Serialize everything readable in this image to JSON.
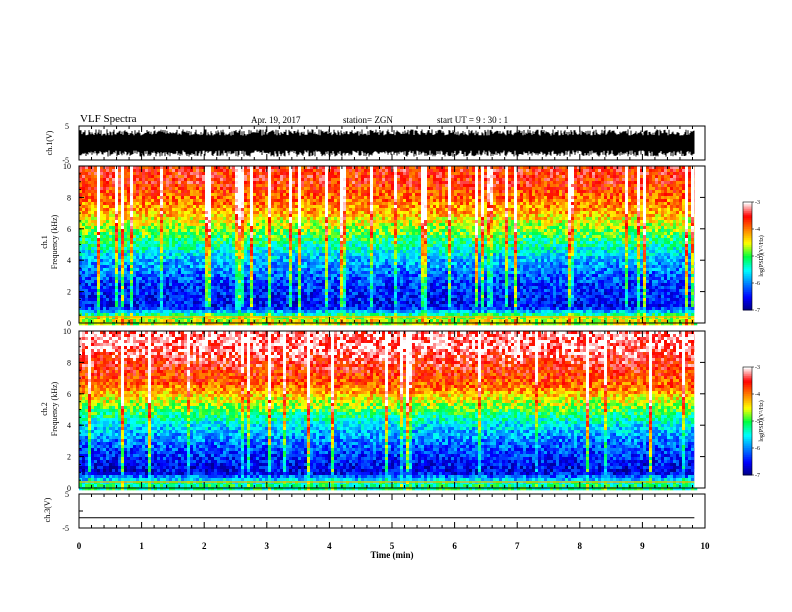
{
  "header": {
    "title": "VLF Spectra",
    "date": "Apr. 19, 2017",
    "station": "station= ZGN",
    "start_time": "start  UT  =   9 : 30 : 1"
  },
  "chart_data": [
    {
      "type": "line",
      "panel": "ch1-waveform",
      "ylabel": "ch.1(V)",
      "ylim": [
        -5,
        5
      ],
      "yticks": [
        5,
        -5
      ],
      "xlim": [
        0,
        10
      ],
      "description_signal": "dense noise waveform",
      "approx_amplitude_range": [
        -4,
        4
      ]
    },
    {
      "type": "heatmap",
      "panel": "ch1-spectrogram",
      "ylabel_line1": "ch.1",
      "ylabel_line2": "Frequency (kHz)",
      "xlim": [
        0,
        10
      ],
      "data_end_min": 9.83,
      "ylim": [
        0,
        10
      ],
      "yticks": [
        0,
        2,
        4,
        6,
        8,
        10
      ],
      "level_profile": [
        {
          "freq_khz": 0.3,
          "log_psd": -4.6
        },
        {
          "freq_khz": 1.0,
          "log_psd": -6.5
        },
        {
          "freq_khz": 2.5,
          "log_psd": -6.3
        },
        {
          "freq_khz": 4.0,
          "log_psd": -5.8
        },
        {
          "freq_khz": 5.5,
          "log_psd": -5.0
        },
        {
          "freq_khz": 7.0,
          "log_psd": -4.2
        },
        {
          "freq_khz": 9.0,
          "log_psd": -3.6
        }
      ],
      "colorbar": {
        "label": "log(PSD)(V²/Hz)",
        "min": -7,
        "max": -3,
        "ticks": [
          -3,
          -4,
          -5,
          -6,
          -7
        ]
      }
    },
    {
      "type": "heatmap",
      "panel": "ch2-spectrogram",
      "ylabel_line1": "ch.2",
      "ylabel_line2": "Frequency (kHz)",
      "xlim": [
        0,
        10
      ],
      "data_end_min": 9.83,
      "ylim": [
        0,
        10
      ],
      "yticks": [
        0,
        2,
        4,
        6,
        8,
        10
      ],
      "level_profile": [
        {
          "freq_khz": 0.3,
          "log_psd": -5.2
        },
        {
          "freq_khz": 1.0,
          "log_psd": -6.6
        },
        {
          "freq_khz": 2.5,
          "log_psd": -6.2
        },
        {
          "freq_khz": 4.0,
          "log_psd": -5.6
        },
        {
          "freq_khz": 5.0,
          "log_psd": -4.9
        },
        {
          "freq_khz": 6.5,
          "log_psd": -3.9
        },
        {
          "freq_khz": 9.0,
          "log_psd": -3.2
        }
      ],
      "colorbar": {
        "label": "log(PSD)(V²/Hz)",
        "min": -7,
        "max": -3,
        "ticks": [
          -3,
          -4,
          -5,
          -6,
          -7
        ]
      }
    },
    {
      "type": "line",
      "panel": "ch3-waveform",
      "ylabel": "ch.3(V)",
      "ylim": [
        -5,
        5
      ],
      "yticks": [
        5,
        0,
        -5
      ],
      "xlim": [
        0,
        10
      ],
      "constant_value": -2
    }
  ],
  "x_axis": {
    "label": "Time  (min)",
    "ticks": [
      "0",
      "1",
      "2",
      "3",
      "4",
      "5",
      "6",
      "7",
      "8",
      "9",
      "10"
    ]
  },
  "colors": {
    "colormap": [
      "#00007f",
      "#0000ff",
      "#0080ff",
      "#00ffff",
      "#00ff40",
      "#ffff00",
      "#ff8000",
      "#ff0000",
      "#ffffff"
    ]
  }
}
